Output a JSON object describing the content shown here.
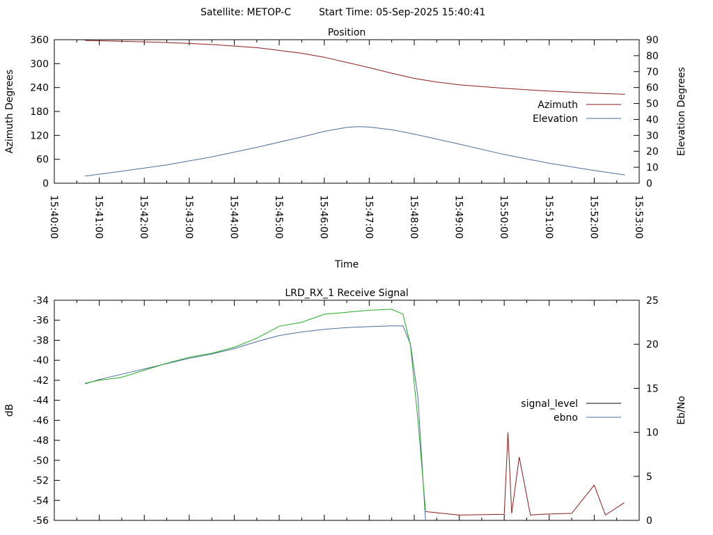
{
  "header": {
    "satellite": "Satellite: METOP-C",
    "start_time": "Start Time: 05-Sep-2025 15:40:41"
  },
  "chart_data": [
    {
      "type": "line",
      "title": "Position",
      "xlabel": "Time",
      "ylabel": "Azimuth Degrees",
      "y2label": "Elevation Degrees",
      "xticks": [
        "15:40:00",
        "15:41:00",
        "15:42:00",
        "15:43:00",
        "15:44:00",
        "15:45:00",
        "15:46:00",
        "15:47:00",
        "15:48:00",
        "15:49:00",
        "15:50:00",
        "15:51:00",
        "15:52:00",
        "15:53:00"
      ],
      "xlim": [
        "15:40:00",
        "15:53:00"
      ],
      "ylim": [
        0,
        360
      ],
      "yticks": [
        "0",
        "60",
        "120",
        "180",
        "240",
        "300",
        "360"
      ],
      "y2lim": [
        0,
        90
      ],
      "y2ticks": [
        "0",
        "10",
        "20",
        "30",
        "40",
        "50",
        "60",
        "70",
        "80",
        "90"
      ],
      "grid": false,
      "legend_position": "right",
      "series": [
        {
          "name": "Azimuth",
          "axis": "y1",
          "color": "#8b1a1a",
          "x": [
            "15:40:41",
            "15:41:30",
            "15:42:30",
            "15:43:30",
            "15:44:30",
            "15:45:30",
            "15:46:00",
            "15:46:30",
            "15:47:00",
            "15:47:30",
            "15:48:00",
            "15:48:30",
            "15:49:00",
            "15:50:00",
            "15:51:00",
            "15:52:00",
            "15:52:41"
          ],
          "y": [
            358,
            356,
            353,
            348,
            340,
            326,
            316,
            303,
            290,
            276,
            263,
            254,
            247,
            238,
            231,
            226,
            223
          ]
        },
        {
          "name": "Elevation",
          "axis": "y2",
          "color": "#4a6d9c",
          "x": [
            "15:40:41",
            "15:41:30",
            "15:42:30",
            "15:43:30",
            "15:44:30",
            "15:45:30",
            "15:46:00",
            "15:46:30",
            "15:46:45",
            "15:47:00",
            "15:47:30",
            "15:48:00",
            "15:48:30",
            "15:49:00",
            "15:50:00",
            "15:51:00",
            "15:52:00",
            "15:52:41"
          ],
          "y": [
            4.5,
            7.5,
            11.5,
            16.5,
            22.5,
            29,
            32.5,
            35,
            35.5,
            35.2,
            33.5,
            30.8,
            27.7,
            24.5,
            18,
            12.5,
            8,
            5.2
          ]
        }
      ]
    },
    {
      "type": "line",
      "title": "LRD_RX_1 Receive Signal",
      "ylabel": "dB",
      "y2label": "Eb/No",
      "ylim": [
        -56,
        -34
      ],
      "yticks": [
        "-34",
        "-36",
        "-38",
        "-40",
        "-42",
        "-44",
        "-46",
        "-48",
        "-50",
        "-52",
        "-54",
        "-56"
      ],
      "y2lim": [
        0,
        25
      ],
      "y2ticks": [
        "0",
        "5",
        "10",
        "15",
        "20",
        "25"
      ],
      "xlim": [
        "15:40:00",
        "15:53:00"
      ],
      "grid": false,
      "legend_position": "right",
      "series": [
        {
          "name": "signal_level",
          "axis": "y1",
          "color": "#000000",
          "x": [],
          "y": []
        },
        {
          "name": "ebno",
          "axis": "y2",
          "color": "#4a6d9c",
          "x": [
            "15:40:41",
            "15:41:00",
            "15:41:10",
            "15:41:30",
            "15:42:00",
            "15:42:30",
            "15:43:00",
            "15:43:30",
            "15:44:00",
            "15:44:30",
            "15:45:00",
            "15:45:30",
            "15:46:00",
            "15:46:30",
            "15:47:00",
            "15:47:30",
            "15:47:45",
            "15:47:55",
            "15:48:05",
            "15:48:15"
          ],
          "y": [
            15.5,
            16,
            16.2,
            16.6,
            17.2,
            17.8,
            18.4,
            18.9,
            19.5,
            20.3,
            21,
            21.4,
            21.7,
            21.9,
            22,
            22.1,
            22.1,
            20,
            14,
            0
          ]
        },
        {
          "color": "#22aa22",
          "axis": "y1",
          "x": [
            "15:40:41",
            "15:41:00",
            "15:41:30",
            "15:42:00",
            "15:42:30",
            "15:43:00",
            "15:43:30",
            "15:44:00",
            "15:44:30",
            "15:45:00",
            "15:45:30",
            "15:46:00",
            "15:46:30",
            "15:47:00",
            "15:47:30",
            "15:47:45",
            "15:47:55",
            "15:48:05",
            "15:48:15"
          ],
          "y": [
            -42.3,
            -42,
            -41.7,
            -41,
            -40.3,
            -39.7,
            -39.3,
            -38.7,
            -37.8,
            -36.6,
            -36.2,
            -35.4,
            -35.2,
            -35.0,
            -34.9,
            -35.4,
            -38.5,
            -46,
            -55
          ]
        },
        {
          "color": "#8b1a1a",
          "axis": "y2",
          "x": [
            "15:48:15",
            "15:49:00",
            "15:50:00",
            "15:50:05",
            "15:50:10",
            "15:50:20",
            "15:50:35",
            "15:50:50",
            "15:51:30",
            "15:52:00",
            "15:52:15",
            "15:52:40"
          ],
          "y": [
            1.0,
            0.6,
            0.7,
            10.0,
            0.8,
            7.2,
            0.6,
            0.7,
            0.8,
            4.0,
            0.6,
            2.0
          ]
        }
      ]
    }
  ]
}
